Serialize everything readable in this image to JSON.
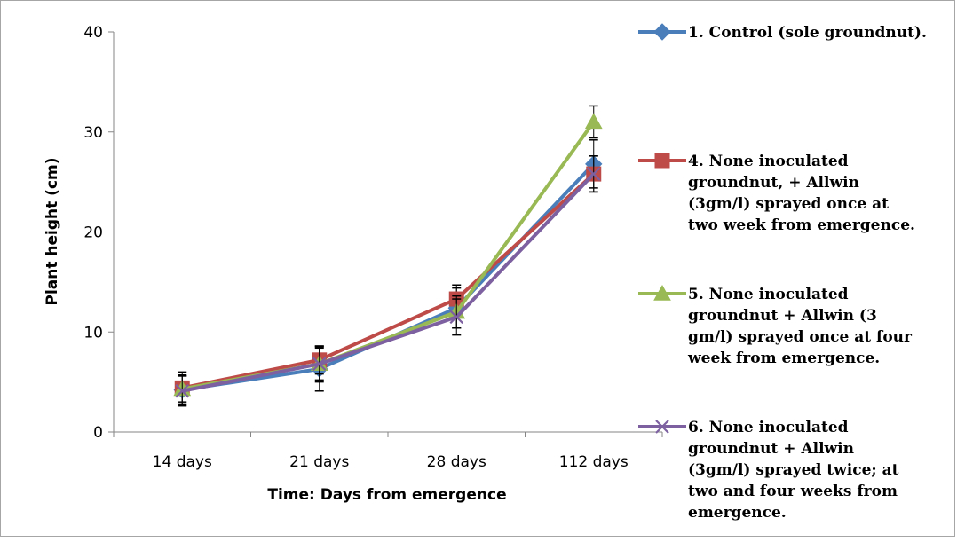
{
  "chart_data": {
    "type": "line",
    "title": "",
    "xlabel": "Time: Days from emergence",
    "ylabel": "Plant height (cm)",
    "categories": [
      "14 days",
      "21 days",
      "28 days",
      "112 days"
    ],
    "ylim": [
      0,
      40
    ],
    "yticks": [
      0,
      10,
      20,
      30,
      40
    ],
    "grid": false,
    "legend_position": "right",
    "series": [
      {
        "name": "1. Control (sole groundnut).",
        "legend_lines": [
          "1. Control (sole groundnut)."
        ],
        "values": [
          4.2,
          6.3,
          12.4,
          26.8
        ],
        "errors": [
          1.5,
          2.2,
          2.0,
          2.4
        ],
        "color": "#4a7ebb",
        "marker": "diamond"
      },
      {
        "name": "4. None inoculated groundnut, + Allwin (3gm/l) sprayed once at two week from emergence.",
        "legend_lines": [
          "4. None inoculated",
          "groundnut, + Allwin",
          "(3gm/l) sprayed once at",
          "two week from emergence."
        ],
        "values": [
          4.4,
          7.2,
          13.3,
          25.8
        ],
        "errors": [
          1.6,
          1.4,
          1.4,
          1.8
        ],
        "color": "#be4b48",
        "marker": "square"
      },
      {
        "name": "5. None inoculated groundnut + Allwin (3 gm/l) sprayed once at four week from emergence.",
        "legend_lines": [
          "5. None inoculated",
          "groundnut + Allwin (3",
          "gm/l) sprayed once at four",
          "week from emergence."
        ],
        "values": [
          4.3,
          6.8,
          12.0,
          31.0
        ],
        "errors": [
          1.3,
          1.6,
          1.6,
          1.6
        ],
        "color": "#98b954",
        "marker": "triangle"
      },
      {
        "name": "6. None inoculated groundnut + Allwin (3gm/l) sprayed twice; at two and four weeks from emergence.",
        "legend_lines": [
          "6. None inoculated",
          "groundnut + Allwin",
          "(3gm/l) sprayed twice; at",
          "two and four weeks from",
          "emergence."
        ],
        "values": [
          4.1,
          6.8,
          11.5,
          25.8
        ],
        "errors": [
          1.5,
          1.8,
          1.8,
          1.8
        ],
        "color": "#7d60a0",
        "marker": "x"
      }
    ]
  }
}
